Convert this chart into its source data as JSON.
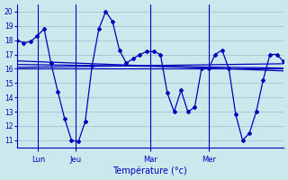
{
  "bg_color": "#cce8ec",
  "line_color": "#0000bb",
  "grid_color": "#99bbcc",
  "xlabel": "Température (°c)",
  "ylim": [
    10.5,
    20.5
  ],
  "yticks": [
    11,
    12,
    13,
    14,
    15,
    16,
    17,
    18,
    19,
    20
  ],
  "day_labels": [
    "Lun",
    "Jeu",
    "Mar",
    "Mer"
  ],
  "series1": [
    18.0,
    17.8,
    17.9,
    18.3,
    18.8,
    16.4,
    14.4,
    12.5,
    11.0,
    10.9,
    12.3,
    16.2,
    18.8,
    20.0,
    19.3,
    17.3,
    16.4,
    16.7,
    17.0,
    17.2,
    17.2,
    17.0,
    14.3,
    13.0,
    14.5,
    13.0,
    13.3,
    16.0,
    16.0,
    17.0,
    17.3,
    16.0,
    12.8,
    11.0,
    11.5,
    13.0,
    15.2,
    17.0,
    17.0,
    16.5
  ],
  "flat_lines": [
    [
      16.0,
      16.0
    ],
    [
      16.1,
      16.35
    ],
    [
      16.3,
      16.05
    ],
    [
      16.55,
      15.85
    ]
  ],
  "marker_style": "D",
  "marker_size": 2.0,
  "line_width": 0.9
}
